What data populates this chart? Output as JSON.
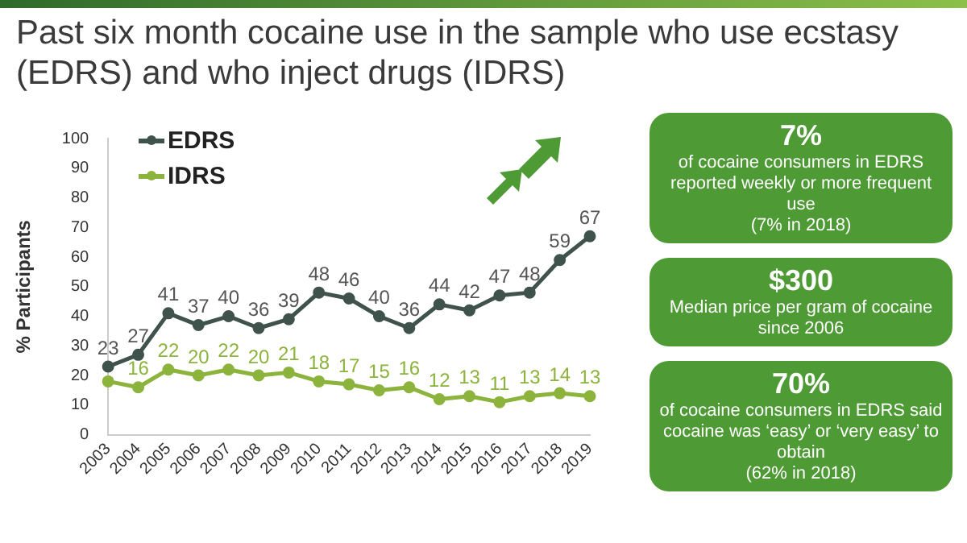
{
  "chart_data": {
    "type": "line",
    "title": "Past six month cocaine use in the sample who use ecstasy (EDRS) and who inject drugs (IDRS)",
    "ylabel": "% Participants",
    "categories": [
      "2003",
      "2004",
      "2005",
      "2006",
      "2007",
      "2008",
      "2009",
      "2010",
      "2011",
      "2012",
      "2013",
      "2014",
      "2015",
      "2016",
      "2017",
      "2018",
      "2019"
    ],
    "series": [
      {
        "name": "EDRS",
        "color": "#3f524c",
        "values": [
          23,
          27,
          41,
          37,
          40,
          36,
          39,
          48,
          46,
          40,
          36,
          44,
          42,
          47,
          48,
          59,
          67
        ],
        "value_labels": [
          "23",
          "27",
          "41",
          "37",
          "40",
          "36",
          "39",
          "48",
          "46",
          "40",
          "36",
          "44",
          "42",
          "47",
          "48",
          "59",
          "67"
        ]
      },
      {
        "name": "IDRS",
        "color": "#8cb33c",
        "values": [
          18,
          16,
          22,
          20,
          22,
          20,
          21,
          18,
          17,
          15,
          16,
          12,
          13,
          11,
          13,
          14,
          13
        ],
        "value_labels": [
          null,
          "16",
          "22",
          "20",
          "22",
          "20",
          "21",
          "18",
          "17",
          "15",
          "16",
          "12",
          "13",
          "11",
          "13",
          "14",
          "13"
        ]
      }
    ],
    "ylim": [
      0,
      100
    ],
    "yticks": [
      0,
      10,
      20,
      30,
      40,
      50,
      60,
      70,
      80,
      90,
      100
    ],
    "grid": false,
    "legend": "top left",
    "marker": "circle",
    "line_style": "solid",
    "annotations": [
      "7%\nof cocaine consumers in EDRS reported weekly or more frequent use\n(7% in 2018)",
      "$300\nMedian price per gram of cocaine since 2006",
      "70%\nof cocaine consumers in EDRS said cocaine was ‘easy’ or ‘very easy’ to obtain\n(62% in 2018)"
    ]
  }
}
